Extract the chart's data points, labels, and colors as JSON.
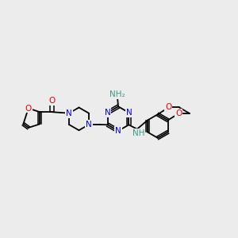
{
  "bg_color": "#ececec",
  "atom_colors": {
    "N_blue": "#0000ee",
    "O_red": "#ee0000",
    "NH_teal": "#3a9a8a",
    "C": "#000000"
  },
  "bond_color": "#000000",
  "font_size": 7.5,
  "fig_width": 3.0,
  "fig_height": 3.0,
  "dpi": 100,
  "xlim": [
    0,
    12
  ],
  "ylim": [
    0,
    10
  ]
}
